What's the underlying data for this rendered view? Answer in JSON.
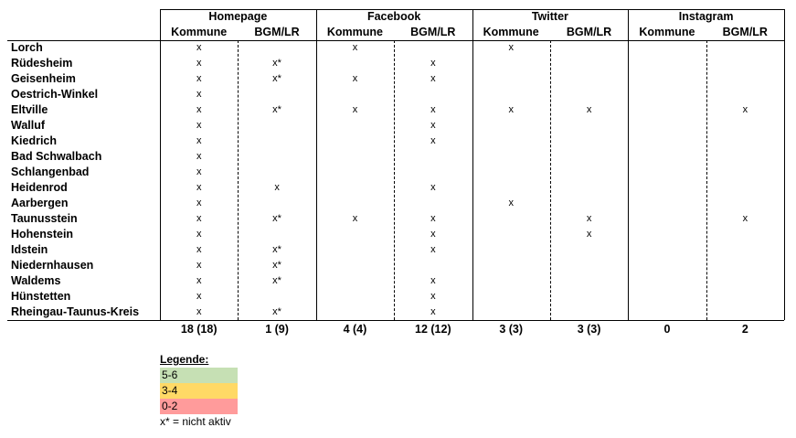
{
  "table": {
    "groups": [
      "Homepage",
      "Facebook",
      "Twitter",
      "Instagram"
    ],
    "subheaders": [
      "Kommune",
      "BGM/LR",
      "Kommune",
      "BGM/LR",
      "Kommune",
      "BGM/LR",
      "Kommune",
      "BGM/LR"
    ],
    "rows": [
      {
        "label": "Lorch",
        "cells": [
          "x",
          null,
          "x",
          null,
          "x",
          null,
          null,
          null
        ]
      },
      {
        "label": "Rüdesheim",
        "cells": [
          "x",
          "x*",
          null,
          "x",
          null,
          null,
          null,
          null
        ]
      },
      {
        "label": "Geisenheim",
        "cells": [
          "x",
          "x*",
          "x",
          "x",
          null,
          null,
          null,
          null
        ]
      },
      {
        "label": "Oestrich-Winkel",
        "cells": [
          "x",
          null,
          null,
          null,
          null,
          null,
          null,
          null
        ]
      },
      {
        "label": "Eltville",
        "cells": [
          "x",
          "x*",
          "x",
          "x",
          "x",
          "x",
          null,
          "x"
        ]
      },
      {
        "label": "Walluf",
        "cells": [
          "x",
          null,
          null,
          "x",
          null,
          null,
          null,
          null
        ]
      },
      {
        "label": "Kiedrich",
        "cells": [
          "x",
          null,
          null,
          "x",
          null,
          null,
          null,
          null
        ]
      },
      {
        "label": "Bad Schwalbach",
        "cells": [
          "x",
          null,
          null,
          null,
          null,
          null,
          null,
          null
        ]
      },
      {
        "label": "Schlangenbad",
        "cells": [
          "x",
          null,
          null,
          null,
          null,
          null,
          null,
          null
        ]
      },
      {
        "label": "Heidenrod",
        "cells": [
          "x",
          "x",
          null,
          "x",
          null,
          null,
          null,
          null
        ]
      },
      {
        "label": "Aarbergen",
        "cells": [
          "x",
          null,
          null,
          null,
          "x",
          null,
          null,
          null
        ]
      },
      {
        "label": "Taunusstein",
        "cells": [
          "x",
          "x*",
          "x",
          "x",
          null,
          "x",
          null,
          "x"
        ]
      },
      {
        "label": "Hohenstein",
        "cells": [
          "x",
          null,
          null,
          "x",
          null,
          "x",
          null,
          null
        ]
      },
      {
        "label": "Idstein",
        "cells": [
          "x",
          "x*",
          null,
          "x",
          null,
          null,
          null,
          null
        ]
      },
      {
        "label": "Niedernhausen",
        "cells": [
          "x",
          "x*",
          null,
          null,
          null,
          null,
          null,
          null
        ]
      },
      {
        "label": "Waldems",
        "cells": [
          "x",
          "x*",
          null,
          "x",
          null,
          null,
          null,
          null
        ]
      },
      {
        "label": "Hünstetten",
        "cells": [
          "x",
          null,
          null,
          "x",
          null,
          null,
          null,
          null
        ]
      },
      {
        "label": "Rheingau-Taunus-Kreis",
        "cells": [
          "x",
          "x*",
          null,
          "x",
          null,
          null,
          null,
          null
        ]
      }
    ],
    "totals": [
      "18 (18)",
      "1 (9)",
      "4 (4)",
      "12 (12)",
      "3 (3)",
      "3 (3)",
      "0",
      "2"
    ]
  },
  "legend": {
    "title": "Legende:",
    "items": [
      {
        "label": "5-6",
        "color": "#c6e0b4"
      },
      {
        "label": "3-4",
        "color": "#ffd966"
      },
      {
        "label": "0-2",
        "color": "#ff9b9b"
      }
    ],
    "note": "x* = nicht aktiv"
  }
}
